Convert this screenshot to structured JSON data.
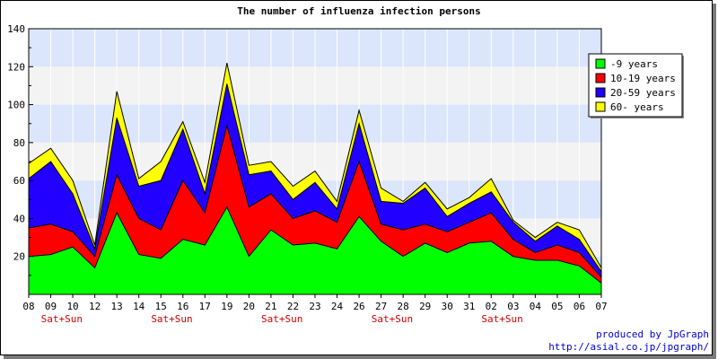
{
  "chart_data": {
    "type": "area",
    "stacked": true,
    "title": "The number of influenza infection persons",
    "xlabel": "",
    "ylabel": "",
    "ylim": [
      0,
      140
    ],
    "yticks": [
      20,
      40,
      60,
      80,
      100,
      120,
      140
    ],
    "categories": [
      "08",
      "09",
      "10",
      "12",
      "13",
      "14",
      "15",
      "16",
      "17",
      "19",
      "20",
      "21",
      "22",
      "23",
      "24",
      "26",
      "27",
      "28",
      "29",
      "30",
      "31",
      "02",
      "03",
      "04",
      "05",
      "06",
      "07"
    ],
    "weekend_markers": [
      {
        "index": 1,
        "label": "Sat+Sun"
      },
      {
        "index": 6,
        "label": "Sat+Sun"
      },
      {
        "index": 11,
        "label": "Sat+Sun"
      },
      {
        "index": 16,
        "label": "Sat+Sun"
      },
      {
        "index": 21,
        "label": "Sat+Sun"
      }
    ],
    "band_color": "#dbe5fb",
    "alt_band_color": "#f3f3f3",
    "series": [
      {
        "name": "-9 years",
        "color": "#00ff00",
        "values": [
          20,
          21,
          25,
          14,
          43,
          21,
          19,
          29,
          26,
          46,
          20,
          34,
          26,
          27,
          24,
          41,
          28,
          20,
          27,
          22,
          27,
          28,
          20,
          18,
          18,
          15,
          6
        ]
      },
      {
        "name": "10-19 years",
        "color": "#ff0000",
        "values": [
          15,
          16,
          8,
          6,
          20,
          19,
          15,
          31,
          17,
          43,
          26,
          19,
          14,
          17,
          14,
          29,
          9,
          14,
          10,
          11,
          11,
          15,
          9,
          4,
          8,
          7,
          3
        ]
      },
      {
        "name": "20-59 years",
        "color": "#2200ff",
        "values": [
          26,
          33,
          20,
          4,
          30,
          17,
          26,
          27,
          10,
          22,
          17,
          12,
          10,
          15,
          7,
          20,
          12,
          14,
          19,
          8,
          10,
          11,
          9,
          6,
          10,
          7,
          3
        ]
      },
      {
        "name": "60- years",
        "color": "#ffff00",
        "values": [
          8,
          7,
          7,
          2,
          14,
          4,
          10,
          4,
          6,
          11,
          5,
          5,
          7,
          6,
          4,
          7,
          7,
          1,
          3,
          4,
          3,
          7,
          1,
          2,
          2,
          5,
          2
        ]
      }
    ],
    "grid": true,
    "legend_position": "top-right"
  },
  "credits": {
    "line1": "produced by JpGraph",
    "line2": "http://asial.co.jp/jpgraph/"
  }
}
